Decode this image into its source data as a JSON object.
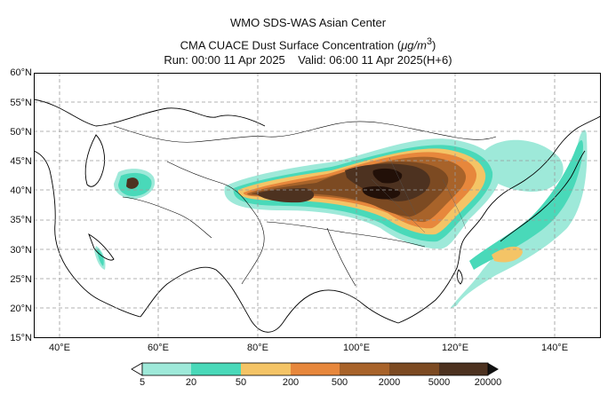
{
  "header": {
    "line1": "WMO SDS-WAS Asian Center",
    "line2_prefix": "CMA CUACE Dust Surface Concentration (",
    "line2_unit": "μg/m",
    "line2_sup": "3",
    "line2_suffix": ")",
    "run_label": "Run: 00:00 11 Apr 2025",
    "valid_label": "Valid: 06:00 11 Apr 2025(H+6)"
  },
  "map": {
    "lat_labels": [
      "60°N",
      "55°N",
      "50°N",
      "45°N",
      "40°N",
      "35°N",
      "30°N",
      "25°N",
      "20°N",
      "15°N"
    ],
    "lon_labels": [
      "40°E",
      "60°E",
      "80°E",
      "100°E",
      "120°E",
      "140°E"
    ],
    "lat_range": [
      15,
      60
    ],
    "lon_range": [
      35,
      150
    ]
  },
  "legend": {
    "levels": [
      "5",
      "20",
      "50",
      "200",
      "500",
      "2000",
      "5000",
      "20000"
    ],
    "colors": [
      "#9ee9d9",
      "#49d9b9",
      "#f4c466",
      "#e7873c",
      "#a8632a",
      "#7c4a22",
      "#4d3220",
      "#221008"
    ],
    "arrow_left_color": "#ffffff",
    "arrow_right_color": "#111111"
  }
}
